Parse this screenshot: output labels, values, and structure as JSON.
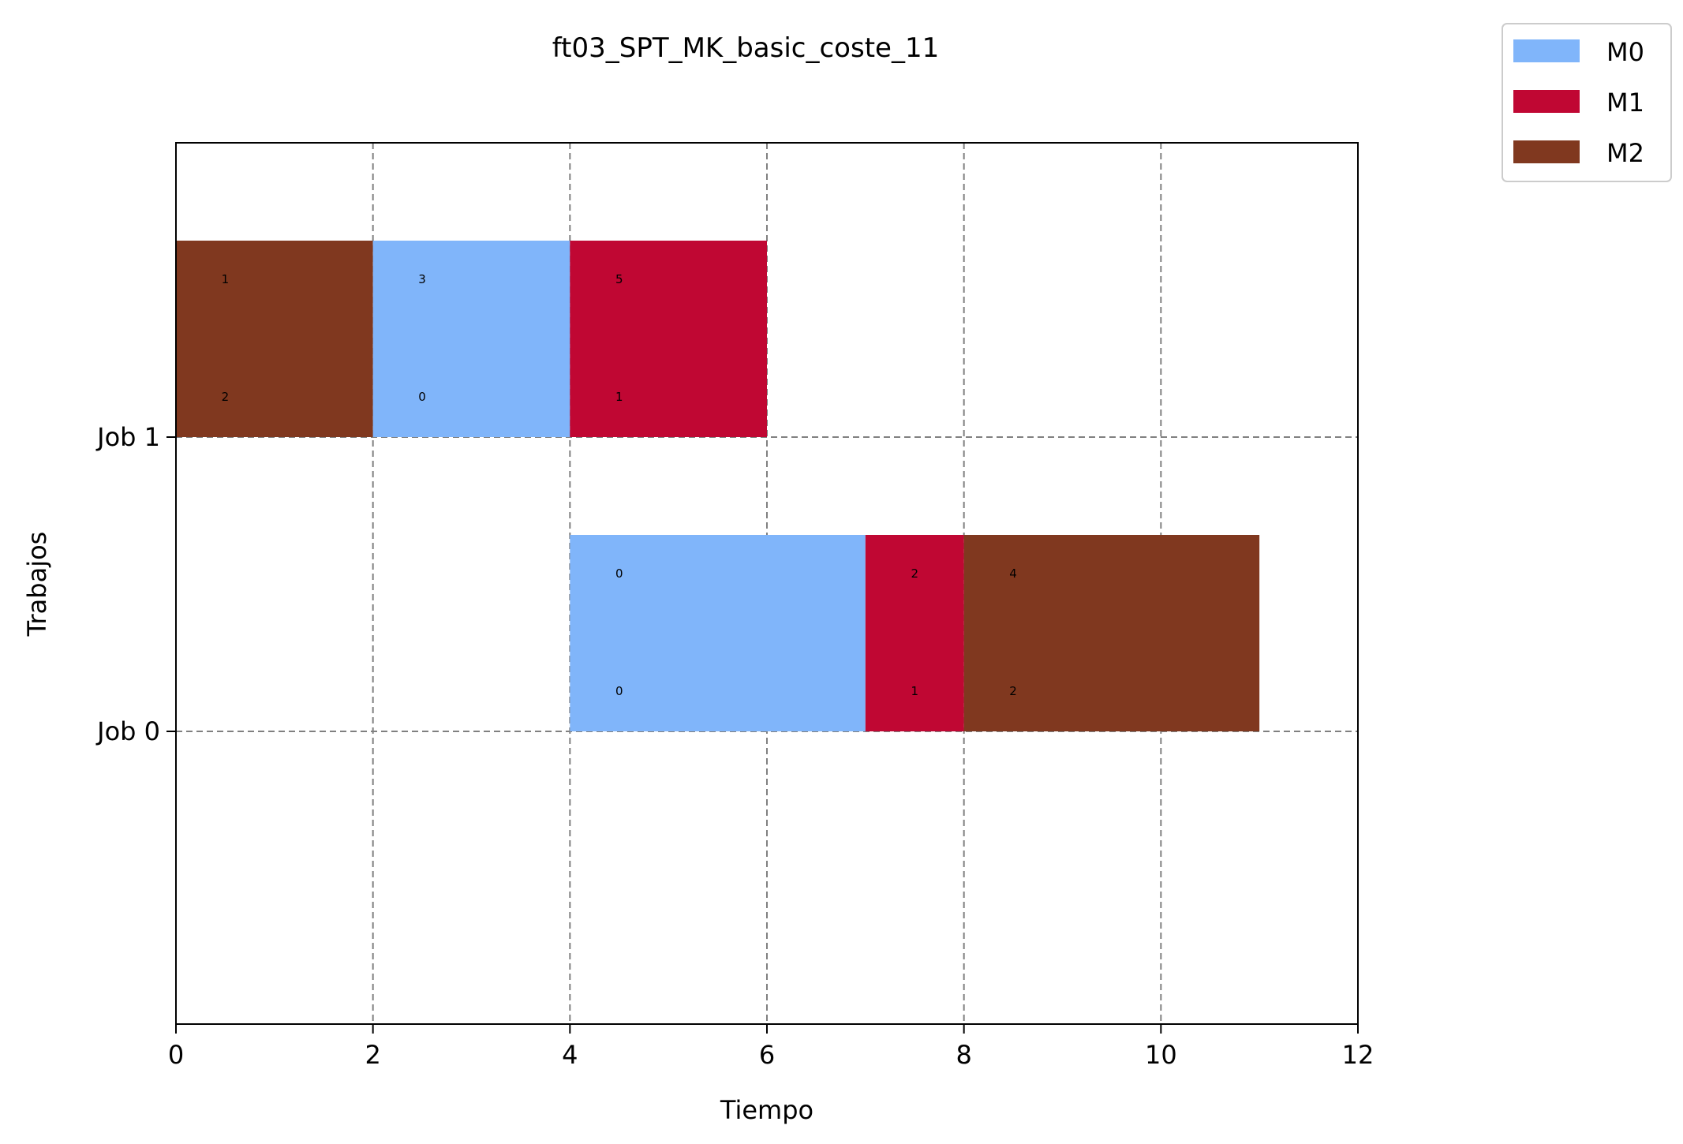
{
  "chart_data": {
    "type": "gantt",
    "title": "ft03_SPT_MK_basic_coste_11",
    "xlabel": "Tiempo",
    "ylabel": "Trabajos",
    "xlim": [
      0,
      12
    ],
    "xticks": [
      0,
      2,
      4,
      6,
      8,
      10,
      12
    ],
    "yticks": [
      "Job 0",
      "Job 1"
    ],
    "grid": true,
    "legend_position": "outside-top-right",
    "machines": [
      {
        "name": "M0",
        "color": "#80b5fa"
      },
      {
        "name": "M1",
        "color": "#c00733"
      },
      {
        "name": "M2",
        "color": "#80381f"
      }
    ],
    "tasks": [
      {
        "job": 1,
        "machine": "M2",
        "start": 0,
        "end": 2,
        "label_top": "1",
        "label_bottom": "2"
      },
      {
        "job": 1,
        "machine": "M0",
        "start": 2,
        "end": 4,
        "label_top": "3",
        "label_bottom": "0"
      },
      {
        "job": 1,
        "machine": "M1",
        "start": 4,
        "end": 6,
        "label_top": "5",
        "label_bottom": "1"
      },
      {
        "job": 0,
        "machine": "M0",
        "start": 4,
        "end": 7,
        "label_top": "0",
        "label_bottom": "0"
      },
      {
        "job": 0,
        "machine": "M1",
        "start": 7,
        "end": 8,
        "label_top": "2",
        "label_bottom": "1"
      },
      {
        "job": 0,
        "machine": "M2",
        "start": 8,
        "end": 11,
        "label_top": "4",
        "label_bottom": "2"
      }
    ]
  }
}
